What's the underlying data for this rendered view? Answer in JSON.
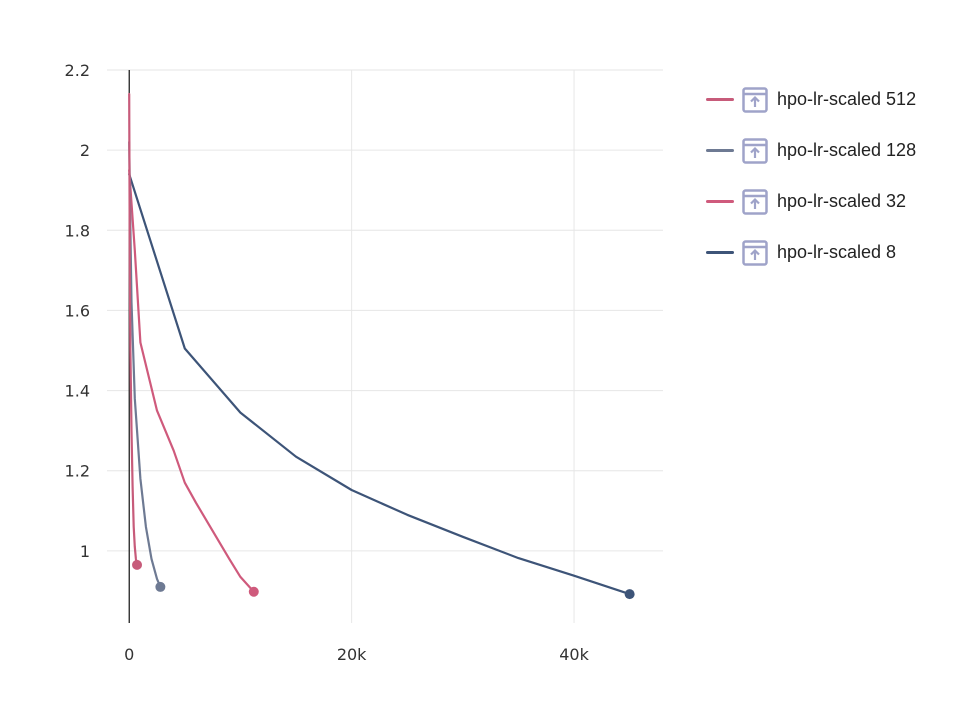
{
  "chart_data": {
    "type": "line",
    "title": "",
    "xlabel": "",
    "ylabel": "",
    "xlim": [
      -2000,
      48000
    ],
    "ylim": [
      0.82,
      2.2
    ],
    "x_ticks": [
      0,
      20000,
      40000
    ],
    "x_tick_labels": [
      "0",
      "20k",
      "40k"
    ],
    "y_ticks": [
      1,
      1.2,
      1.4,
      1.6,
      1.8,
      2,
      2.2
    ],
    "y_tick_labels": [
      "1",
      "1.2",
      "1.4",
      "1.6",
      "1.8",
      "2",
      "2.2"
    ],
    "grid": true,
    "legend_position": "top-right",
    "series": [
      {
        "name": "hpo-lr-scaled 512",
        "color": "#c75b7a",
        "x": [
          0,
          50,
          100,
          200,
          300,
          400,
          500,
          600,
          700
        ],
        "y": [
          2.14,
          1.7,
          1.5,
          1.3,
          1.16,
          1.06,
          1.01,
          0.98,
          0.965
        ],
        "marker": "end"
      },
      {
        "name": "hpo-lr-scaled 128",
        "color": "#6e7a93",
        "x": [
          0,
          100,
          200,
          500,
          1000,
          1500,
          2000,
          2500,
          2800
        ],
        "y": [
          2.02,
          1.8,
          1.62,
          1.38,
          1.18,
          1.06,
          0.98,
          0.93,
          0.91
        ],
        "marker": "end"
      },
      {
        "name": "hpo-lr-scaled 32",
        "color": "#cf5a7c",
        "x": [
          0,
          500,
          1000,
          2500,
          4000,
          5000,
          6000,
          7500,
          9000,
          10000,
          11200
        ],
        "y": [
          1.95,
          1.75,
          1.52,
          1.35,
          1.25,
          1.17,
          1.12,
          1.05,
          0.98,
          0.935,
          0.898
        ],
        "marker": "end"
      },
      {
        "name": "hpo-lr-scaled 8",
        "color": "#3d5478",
        "x": [
          0,
          5000,
          10000,
          15000,
          20000,
          25000,
          30000,
          35000,
          40000,
          45000
        ],
        "y": [
          1.94,
          1.505,
          1.345,
          1.235,
          1.152,
          1.09,
          1.035,
          0.982,
          0.938,
          0.892
        ],
        "marker": "end"
      }
    ]
  },
  "legend": {
    "items": [
      {
        "label": "hpo-lr-scaled 512",
        "color": "#c75b7a",
        "icon": "run-upload-icon"
      },
      {
        "label": "hpo-lr-scaled 128",
        "color": "#6e7a93",
        "icon": "run-upload-icon"
      },
      {
        "label": "hpo-lr-scaled 32",
        "color": "#cf5a7c",
        "icon": "run-upload-icon"
      },
      {
        "label": "hpo-lr-scaled 8",
        "color": "#3d5478",
        "icon": "run-upload-icon"
      }
    ]
  },
  "colors": {
    "grid": "#e6e6e6",
    "axis": "#222222",
    "icon": "#9fa3c9"
  }
}
